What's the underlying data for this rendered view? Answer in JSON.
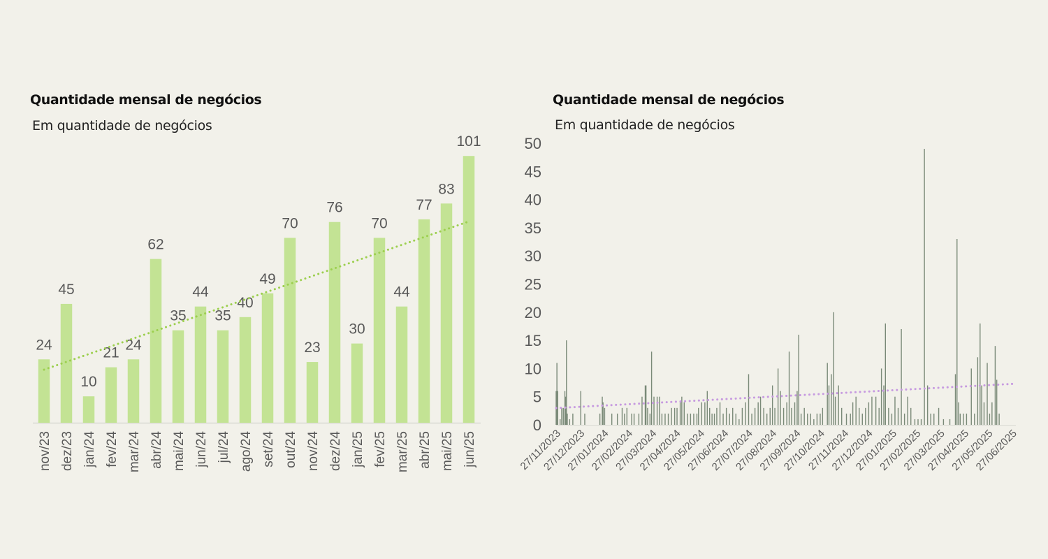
{
  "chart_data": [
    {
      "type": "bar",
      "title": "Quantidade mensal de negócios",
      "subtitle": "Em quantidade de negócios",
      "categories": [
        "nov/23",
        "dez/23",
        "jan/24",
        "fev/24",
        "mar/24",
        "abr/24",
        "mai/24",
        "jun/24",
        "jul/24",
        "ago/24",
        "set/24",
        "out/24",
        "nov/24",
        "dez/24",
        "jan/25",
        "fev/25",
        "mar/25",
        "abr/25",
        "mai/25",
        "jun/25"
      ],
      "values": [
        24,
        45,
        10,
        21,
        24,
        62,
        35,
        44,
        35,
        40,
        49,
        70,
        23,
        76,
        30,
        70,
        44,
        77,
        83,
        101
      ],
      "trendline": {
        "style": "dotted",
        "type": "linear"
      },
      "data_labels": true,
      "bar_color": "#c3e394",
      "trend_color": "#9ccf4e"
    },
    {
      "type": "bar",
      "title": "Quantidade mensal de negócios",
      "subtitle": "Em quantidade de negócios",
      "ylim": [
        0,
        50
      ],
      "yticks": [
        0,
        5,
        10,
        15,
        20,
        25,
        30,
        35,
        40,
        45,
        50
      ],
      "xlim": [
        "2023-11-27",
        "2025-06-27"
      ],
      "xtick_labels": [
        "27/11/2023",
        "27/12/2023",
        "27/01/2024",
        "27/02/2024",
        "27/03/2024",
        "27/04/2024",
        "27/05/2024",
        "27/06/2024",
        "27/07/2024",
        "27/08/2024",
        "27/09/2024",
        "27/10/2024",
        "27/11/2024",
        "27/12/2024",
        "27/01/2025",
        "27/02/2025",
        "27/03/2025",
        "27/04/2025",
        "27/05/2025",
        "27/06/2025"
      ],
      "points": [
        [
          "2023-11-27",
          6
        ],
        [
          "2023-11-28",
          11
        ],
        [
          "2023-11-29",
          6
        ],
        [
          "2023-12-02",
          1
        ],
        [
          "2023-12-04",
          3
        ],
        [
          "2023-12-06",
          3
        ],
        [
          "2023-12-08",
          6
        ],
        [
          "2023-12-09",
          5
        ],
        [
          "2023-12-10",
          15
        ],
        [
          "2023-12-11",
          2
        ],
        [
          "2023-12-14",
          1
        ],
        [
          "2023-12-18",
          2
        ],
        [
          "2023-12-28",
          6
        ],
        [
          "2024-01-02",
          2
        ],
        [
          "2024-01-21",
          2
        ],
        [
          "2024-01-24",
          5
        ],
        [
          "2024-01-25",
          4
        ],
        [
          "2024-01-27",
          3
        ],
        [
          "2024-02-05",
          2
        ],
        [
          "2024-02-12",
          2
        ],
        [
          "2024-02-18",
          3
        ],
        [
          "2024-02-21",
          2
        ],
        [
          "2024-02-24",
          3
        ],
        [
          "2024-03-01",
          2
        ],
        [
          "2024-03-04",
          2
        ],
        [
          "2024-03-10",
          2
        ],
        [
          "2024-03-14",
          5
        ],
        [
          "2024-03-18",
          7
        ],
        [
          "2024-03-19",
          7
        ],
        [
          "2024-03-21",
          3
        ],
        [
          "2024-03-24",
          2
        ],
        [
          "2024-03-26",
          13
        ],
        [
          "2024-03-29",
          5
        ],
        [
          "2024-04-02",
          5
        ],
        [
          "2024-04-05",
          5
        ],
        [
          "2024-04-08",
          2
        ],
        [
          "2024-04-12",
          2
        ],
        [
          "2024-04-16",
          2
        ],
        [
          "2024-04-20",
          3
        ],
        [
          "2024-04-24",
          3
        ],
        [
          "2024-04-27",
          3
        ],
        [
          "2024-05-01",
          4
        ],
        [
          "2024-05-03",
          5
        ],
        [
          "2024-05-06",
          4
        ],
        [
          "2024-05-10",
          2
        ],
        [
          "2024-05-14",
          2
        ],
        [
          "2024-05-18",
          2
        ],
        [
          "2024-05-22",
          2
        ],
        [
          "2024-05-24",
          3
        ],
        [
          "2024-05-28",
          4
        ],
        [
          "2024-06-01",
          4
        ],
        [
          "2024-06-04",
          6
        ],
        [
          "2024-06-07",
          3
        ],
        [
          "2024-06-10",
          2
        ],
        [
          "2024-06-13",
          2
        ],
        [
          "2024-06-16",
          3
        ],
        [
          "2024-06-20",
          4
        ],
        [
          "2024-06-24",
          2
        ],
        [
          "2024-06-28",
          3
        ],
        [
          "2024-07-02",
          2
        ],
        [
          "2024-07-06",
          3
        ],
        [
          "2024-07-10",
          2
        ],
        [
          "2024-07-14",
          1
        ],
        [
          "2024-07-18",
          3
        ],
        [
          "2024-07-22",
          4
        ],
        [
          "2024-07-26",
          9
        ],
        [
          "2024-07-30",
          2
        ],
        [
          "2024-08-03",
          3
        ],
        [
          "2024-08-07",
          4
        ],
        [
          "2024-08-10",
          5
        ],
        [
          "2024-08-14",
          3
        ],
        [
          "2024-08-18",
          2
        ],
        [
          "2024-08-22",
          3
        ],
        [
          "2024-08-25",
          7
        ],
        [
          "2024-08-28",
          3
        ],
        [
          "2024-09-01",
          10
        ],
        [
          "2024-09-04",
          6
        ],
        [
          "2024-09-08",
          3
        ],
        [
          "2024-09-12",
          4
        ],
        [
          "2024-09-15",
          13
        ],
        [
          "2024-09-18",
          3
        ],
        [
          "2024-09-22",
          4
        ],
        [
          "2024-09-25",
          6
        ],
        [
          "2024-09-27",
          16
        ],
        [
          "2024-09-30",
          2
        ],
        [
          "2024-10-04",
          3
        ],
        [
          "2024-10-08",
          2
        ],
        [
          "2024-10-12",
          2
        ],
        [
          "2024-10-16",
          1
        ],
        [
          "2024-10-20",
          2
        ],
        [
          "2024-10-24",
          2
        ],
        [
          "2024-10-27",
          3
        ],
        [
          "2024-11-02",
          11
        ],
        [
          "2024-11-04",
          7
        ],
        [
          "2024-11-07",
          9
        ],
        [
          "2024-11-10",
          20
        ],
        [
          "2024-11-12",
          5
        ],
        [
          "2024-11-16",
          7
        ],
        [
          "2024-11-20",
          3
        ],
        [
          "2024-11-26",
          2
        ],
        [
          "2024-12-01",
          2
        ],
        [
          "2024-12-04",
          4
        ],
        [
          "2024-12-08",
          5
        ],
        [
          "2024-12-12",
          3
        ],
        [
          "2024-12-16",
          2
        ],
        [
          "2024-12-20",
          3
        ],
        [
          "2024-12-24",
          4
        ],
        [
          "2024-12-28",
          5
        ],
        [
          "2025-01-02",
          5
        ],
        [
          "2025-01-06",
          3
        ],
        [
          "2025-01-09",
          10
        ],
        [
          "2025-01-12",
          7
        ],
        [
          "2025-01-14",
          18
        ],
        [
          "2025-01-18",
          3
        ],
        [
          "2025-01-22",
          2
        ],
        [
          "2025-01-26",
          5
        ],
        [
          "2025-01-30",
          3
        ],
        [
          "2025-02-03",
          17
        ],
        [
          "2025-02-07",
          2
        ],
        [
          "2025-02-11",
          5
        ],
        [
          "2025-02-15",
          3
        ],
        [
          "2025-02-20",
          1
        ],
        [
          "2025-02-24",
          1
        ],
        [
          "2025-02-28",
          1
        ],
        [
          "2025-03-04",
          49
        ],
        [
          "2025-03-08",
          7
        ],
        [
          "2025-03-12",
          2
        ],
        [
          "2025-03-16",
          2
        ],
        [
          "2025-03-22",
          3
        ],
        [
          "2025-03-28",
          1
        ],
        [
          "2025-04-05",
          1
        ],
        [
          "2025-04-12",
          9
        ],
        [
          "2025-04-14",
          33
        ],
        [
          "2025-04-16",
          4
        ],
        [
          "2025-04-18",
          2
        ],
        [
          "2025-04-22",
          2
        ],
        [
          "2025-04-26",
          2
        ],
        [
          "2025-05-02",
          10
        ],
        [
          "2025-05-06",
          2
        ],
        [
          "2025-05-10",
          12
        ],
        [
          "2025-05-13",
          18
        ],
        [
          "2025-05-15",
          7
        ],
        [
          "2025-05-18",
          4
        ],
        [
          "2025-05-22",
          11
        ],
        [
          "2025-05-25",
          2
        ],
        [
          "2025-05-28",
          4
        ],
        [
          "2025-06-01",
          14
        ],
        [
          "2025-06-03",
          8
        ],
        [
          "2025-06-06",
          2
        ]
      ],
      "trendline": {
        "style": "dotted",
        "type": "linear"
      },
      "bar_color": "#7a8a78",
      "trend_color": "#c79be0"
    }
  ]
}
